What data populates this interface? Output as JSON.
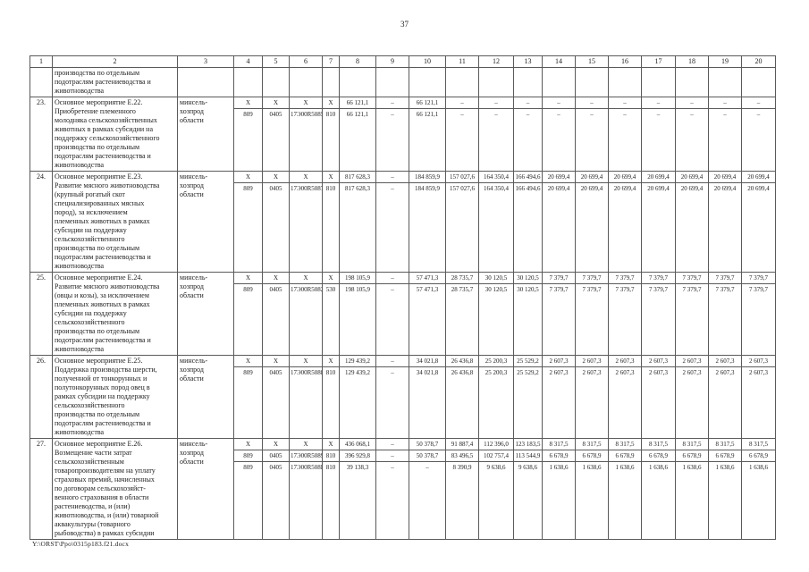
{
  "page": {
    "number": "37",
    "footer_path": "Y:\\ORST\\Ppo\\0315p183.f21.docx"
  },
  "table": {
    "column_headers": [
      "1",
      "2",
      "3",
      "4",
      "5",
      "6",
      "7",
      "8",
      "9",
      "10",
      "11",
      "12",
      "13",
      "14",
      "15",
      "16",
      "17",
      "18",
      "19",
      "20"
    ],
    "continuation_row": {
      "name": "производства по отдельным\nподотраслям растениеводства и\nживотноводства"
    },
    "rows": [
      {
        "num": "23.",
        "name": "Основное мероприятие Е.22.\nПриобретение племенного\nмолодняка сельскохозяйственных\nживотных в рамках субсидии на\nподдержку сельскохозяйственного\nпроизводства по отдельным\nподотраслям растениеводства и\nживотноводства",
        "executor": "минсель-\nхозпрод\nобласти",
        "sub_rows": [
          [
            "X",
            "X",
            "X",
            "X",
            "66 121,1",
            "–",
            "66 121,1",
            "–",
            "–",
            "–",
            "–",
            "–",
            "–",
            "–",
            "–",
            "–",
            "–"
          ],
          [
            "809",
            "0405",
            "17Э00R5085",
            "810",
            "66 121,1",
            "–",
            "66 121,1",
            "–",
            "–",
            "–",
            "–",
            "–",
            "–",
            "–",
            "–",
            "–",
            "–"
          ]
        ]
      },
      {
        "num": "24.",
        "name": "Основное мероприятие Е.23.\nРазвитие мясного животноводства\n(крупный рогатый скот\nспециализированных мясных\nпород), за исключением\nплеменных животных в рамках\nсубсидии на поддержку\nсельскохозяйственного\nпроизводства по отдельным\nподотраслям растениеводства и\nживотноводства",
        "executor": "минсель-\nхозпрод\nобласти",
        "sub_rows": [
          [
            "X",
            "X",
            "X",
            "X",
            "817 628,3",
            "–",
            "184 859,9",
            "157 027,6",
            "164 350,4",
            "166 494,6",
            "20 699,4",
            "20 699,4",
            "20 699,4",
            "20 699,4",
            "20 699,4",
            "20 699,4",
            "20 699,4"
          ],
          [
            "809",
            "0405",
            "17Э00R5087",
            "810",
            "817 628,3",
            "–",
            "184 859,9",
            "157 027,6",
            "164 350,4",
            "166 494,6",
            "20 699,4",
            "20 699,4",
            "20 699,4",
            "20 699,4",
            "20 699,4",
            "20 699,4",
            "20 699,4"
          ]
        ]
      },
      {
        "num": "25.",
        "name": "Основное мероприятие Е.24.\nРазвитие мясного животноводства\n(овцы и козы), за исключением\nплеменных животных в рамках\nсубсидии на поддержку\nсельскохозяйственного\nпроизводства по отдельным\nподотраслям растениеводства и\nживотноводства",
        "executor": "минсель-\nхозпрод\nобласти",
        "sub_rows": [
          [
            "X",
            "X",
            "X",
            "X",
            "198 105,9",
            "–",
            "57 471,3",
            "28 735,7",
            "30 120,5",
            "30 120,5",
            "7 379,7",
            "7 379,7",
            "7 379,7",
            "7 379,7",
            "7 379,7",
            "7 379,7",
            "7 379,7"
          ],
          [
            "809",
            "0405",
            "17Э00R5082",
            "530",
            "198 105,9",
            "–",
            "57 471,3",
            "28 735,7",
            "30 120,5",
            "30 120,5",
            "7 379,7",
            "7 379,7",
            "7 379,7",
            "7 379,7",
            "7 379,7",
            "7 379,7",
            "7 379,7"
          ]
        ]
      },
      {
        "num": "26.",
        "name": "Основное мероприятие Е.25.\nПоддержка производства шерсти,\nполученной от тонкорунных и\nполутонкорунных пород овец в\nрамках субсидии на поддержку\nсельскохозяйственного\nпроизводства по отдельным\nподотраслям растениеводства и\nживотноводства",
        "executor": "минсель-\nхозпрод\nобласти",
        "sub_rows": [
          [
            "X",
            "X",
            "X",
            "X",
            "129 439,2",
            "–",
            "34 021,8",
            "26 436,8",
            "25 200,3",
            "25 529,2",
            "2 607,3",
            "2 607,3",
            "2 607,3",
            "2 607,3",
            "2 607,3",
            "2 607,3",
            "2 607,3"
          ],
          [
            "809",
            "0405",
            "17Э00R5088",
            "810",
            "129 439,2",
            "–",
            "34 021,8",
            "26 436,8",
            "25 200,3",
            "25 529,2",
            "2 607,3",
            "2 607,3",
            "2 607,3",
            "2 607,3",
            "2 607,3",
            "2 607,3",
            "2 607,3"
          ]
        ]
      },
      {
        "num": "27.",
        "name": "Основное мероприятие Е.26.\nВозмещение части затрат\nсельскохозяйственным\nтоваропроизводителям на уплату\nстраховых премий, начисленных\nпо договорам сельскохозяйст-\nвенного страхования в области\nрастениеводства, и (или)\nживотноводства, и (или) товарной\nаквакультуры (товарного\nрыбоводства) в рамках субсидии",
        "executor": "минсель-\nхозпрод\nобласти",
        "sub_rows": [
          [
            "X",
            "X",
            "X",
            "X",
            "436 068,1",
            "–",
            "50 378,7",
            "91 887,4",
            "112 396,0",
            "123 183,5",
            "8 317,5",
            "8 317,5",
            "8 317,5",
            "8 317,5",
            "8 317,5",
            "8 317,5",
            "8 317,5"
          ],
          [
            "809",
            "0405",
            "17Э00R5089",
            "810",
            "396 929,8",
            "–",
            "50 378,7",
            "83 496,5",
            "102 757,4",
            "113 544,9",
            "6 678,9",
            "6 678,9",
            "6 678,9",
            "6 678,9",
            "6 678,9",
            "6 678,9",
            "6 678,9"
          ],
          [
            "809",
            "0405",
            "17Э00R508Г",
            "810",
            "39 138,3",
            "–",
            "–",
            "8 390,9",
            "9 638,6",
            "9 638,6",
            "1 638,6",
            "1 638,6",
            "1 638,6",
            "1 638,6",
            "1 638,6",
            "1 638,6",
            "1 638,6"
          ]
        ]
      }
    ]
  }
}
